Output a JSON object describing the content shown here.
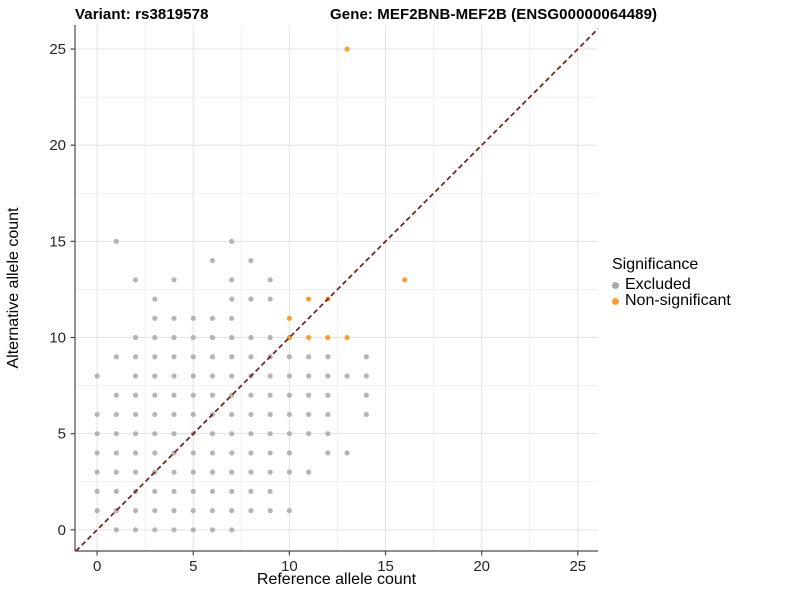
{
  "header": {
    "variant_title": "Variant: rs3819578",
    "gene_title": "Gene: MEF2BNB-MEF2B (ENSG00000064489)"
  },
  "chart_data": {
    "type": "scatter",
    "xlabel": "Reference allele count",
    "ylabel": "Alternative allele count",
    "x_ticks": [
      0,
      5,
      10,
      15,
      20,
      25
    ],
    "y_ticks": [
      0,
      5,
      10,
      15,
      20,
      25
    ],
    "x_minor_gridlines": [
      2.5,
      7.5,
      12.5,
      17.5,
      22.5
    ],
    "y_minor_gridlines": [
      2.5,
      7.5,
      12.5,
      17.5,
      22.5
    ],
    "xlim": [
      -1.15,
      26.05
    ],
    "ylim": [
      -1.1,
      26.25
    ],
    "grid": true,
    "legend_position": "right",
    "identity_line": {
      "slope": 1,
      "intercept": 0,
      "style": "dashed",
      "color": "#7D1A1D"
    },
    "legend": {
      "title": "Significance",
      "items": [
        {
          "label": "Excluded",
          "color": "#A8A8A8"
        },
        {
          "label": "Non-significant",
          "color": "#F8A02C"
        }
      ]
    },
    "series": [
      {
        "name": "Excluded",
        "color": "#A8A8A8",
        "opacity": 0.85,
        "points": [
          [
            1,
            0
          ],
          [
            2,
            0
          ],
          [
            3,
            0
          ],
          [
            4,
            0
          ],
          [
            5,
            0
          ],
          [
            6,
            0
          ],
          [
            7,
            0
          ],
          [
            0,
            1
          ],
          [
            1,
            1
          ],
          [
            2,
            1
          ],
          [
            3,
            1
          ],
          [
            4,
            1
          ],
          [
            5,
            1
          ],
          [
            6,
            1
          ],
          [
            7,
            1
          ],
          [
            8,
            1
          ],
          [
            9,
            1
          ],
          [
            10,
            1
          ],
          [
            0,
            2
          ],
          [
            1,
            2
          ],
          [
            2,
            2
          ],
          [
            3,
            2
          ],
          [
            4,
            2
          ],
          [
            5,
            2
          ],
          [
            6,
            2
          ],
          [
            7,
            2
          ],
          [
            8,
            2
          ],
          [
            9,
            2
          ],
          [
            0,
            3
          ],
          [
            1,
            3
          ],
          [
            2,
            3
          ],
          [
            3,
            3
          ],
          [
            4,
            3
          ],
          [
            5,
            3
          ],
          [
            6,
            3
          ],
          [
            7,
            3
          ],
          [
            8,
            3
          ],
          [
            9,
            3
          ],
          [
            10,
            3
          ],
          [
            11,
            3
          ],
          [
            0,
            4
          ],
          [
            1,
            4
          ],
          [
            2,
            4
          ],
          [
            3,
            4
          ],
          [
            4,
            4
          ],
          [
            5,
            4
          ],
          [
            6,
            4
          ],
          [
            7,
            4
          ],
          [
            8,
            4
          ],
          [
            9,
            4
          ],
          [
            10,
            4
          ],
          [
            12,
            4
          ],
          [
            13,
            4
          ],
          [
            0,
            5
          ],
          [
            1,
            5
          ],
          [
            2,
            5
          ],
          [
            3,
            5
          ],
          [
            4,
            5
          ],
          [
            5,
            5
          ],
          [
            6,
            5
          ],
          [
            7,
            5
          ],
          [
            8,
            5
          ],
          [
            9,
            5
          ],
          [
            10,
            5
          ],
          [
            11,
            5
          ],
          [
            12,
            5
          ],
          [
            0,
            6
          ],
          [
            1,
            6
          ],
          [
            2,
            6
          ],
          [
            3,
            6
          ],
          [
            4,
            6
          ],
          [
            5,
            6
          ],
          [
            6,
            6
          ],
          [
            7,
            6
          ],
          [
            8,
            6
          ],
          [
            9,
            6
          ],
          [
            10,
            6
          ],
          [
            11,
            6
          ],
          [
            12,
            6
          ],
          [
            14,
            6
          ],
          [
            1,
            7
          ],
          [
            2,
            7
          ],
          [
            3,
            7
          ],
          [
            4,
            7
          ],
          [
            5,
            7
          ],
          [
            6,
            7
          ],
          [
            7,
            7
          ],
          [
            8,
            7
          ],
          [
            9,
            7
          ],
          [
            10,
            7
          ],
          [
            11,
            7
          ],
          [
            12,
            7
          ],
          [
            14,
            7
          ],
          [
            0,
            8
          ],
          [
            2,
            8
          ],
          [
            3,
            8
          ],
          [
            4,
            8
          ],
          [
            5,
            8
          ],
          [
            6,
            8
          ],
          [
            7,
            8
          ],
          [
            8,
            8
          ],
          [
            9,
            8
          ],
          [
            10,
            8
          ],
          [
            11,
            8
          ],
          [
            12,
            8
          ],
          [
            13,
            8
          ],
          [
            14,
            8
          ],
          [
            1,
            9
          ],
          [
            2,
            9
          ],
          [
            3,
            9
          ],
          [
            4,
            9
          ],
          [
            5,
            9
          ],
          [
            6,
            9
          ],
          [
            7,
            9
          ],
          [
            8,
            9
          ],
          [
            9,
            9
          ],
          [
            10,
            9
          ],
          [
            11,
            9
          ],
          [
            12,
            9
          ],
          [
            14,
            9
          ],
          [
            2,
            10
          ],
          [
            3,
            10
          ],
          [
            4,
            10
          ],
          [
            5,
            10
          ],
          [
            6,
            10
          ],
          [
            7,
            10
          ],
          [
            8,
            10
          ],
          [
            9,
            10
          ],
          [
            3,
            11
          ],
          [
            4,
            11
          ],
          [
            5,
            11
          ],
          [
            6,
            11
          ],
          [
            7,
            11
          ],
          [
            3,
            12
          ],
          [
            7,
            12
          ],
          [
            8,
            12
          ],
          [
            9,
            12
          ],
          [
            2,
            13
          ],
          [
            4,
            13
          ],
          [
            7,
            13
          ],
          [
            9,
            13
          ],
          [
            6,
            14
          ],
          [
            8,
            14
          ],
          [
            1,
            15
          ],
          [
            7,
            15
          ]
        ]
      },
      {
        "name": "Non-significant",
        "color": "#F8A02C",
        "opacity": 1,
        "points": [
          [
            10,
            10
          ],
          [
            11,
            10
          ],
          [
            12,
            10
          ],
          [
            13,
            10
          ],
          [
            10,
            11
          ],
          [
            11,
            12
          ],
          [
            12,
            12
          ],
          [
            16,
            13
          ],
          [
            13,
            25
          ]
        ]
      }
    ]
  },
  "colors": {
    "grid_major": "#E3E3E3",
    "grid_minor": "#EFEFEF",
    "axis_line": "#4A4A4A",
    "tick_label": "#262626",
    "axis_title": "#000000",
    "background": "#FFFFFF"
  }
}
